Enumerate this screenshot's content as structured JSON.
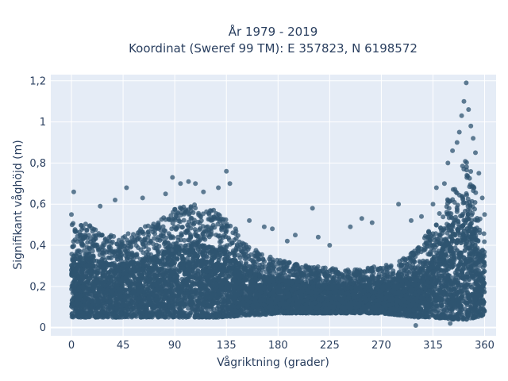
{
  "chart_data": {
    "type": "scatter",
    "title_line1": "År 1979 - 2019",
    "title_line2": "Koordinat (Sweref 99 TM): E 357823, N 6198572",
    "xlabel": "Vågriktning (grader)",
    "ylabel": "Signifikant våghöjd (m)",
    "xlim": [
      -18,
      370
    ],
    "ylim": [
      -0.04,
      1.23
    ],
    "x_ticks": [
      0,
      45,
      90,
      135,
      180,
      225,
      270,
      315,
      360
    ],
    "x_tick_labels": [
      "0",
      "45",
      "90",
      "135",
      "180",
      "225",
      "270",
      "315",
      "360"
    ],
    "y_ticks": [
      0,
      0.2,
      0.4,
      0.6,
      0.8,
      1.0,
      1.2
    ],
    "y_tick_labels": [
      "0",
      "0,2",
      "0,4",
      "0,6",
      "0,8",
      "1",
      "1,2"
    ],
    "grid": true,
    "marker_color": "#2f5470",
    "density_envelope": {
      "x": [
        0,
        15,
        30,
        45,
        60,
        75,
        90,
        105,
        120,
        135,
        150,
        165,
        180,
        195,
        210,
        225,
        240,
        255,
        270,
        285,
        300,
        315,
        330,
        345,
        360
      ],
      "y_min": [
        0.05,
        0.05,
        0.05,
        0.05,
        0.05,
        0.05,
        0.05,
        0.05,
        0.05,
        0.05,
        0.06,
        0.06,
        0.07,
        0.07,
        0.07,
        0.07,
        0.07,
        0.07,
        0.07,
        0.06,
        0.05,
        0.05,
        0.04,
        0.04,
        0.06
      ],
      "y_max": [
        0.52,
        0.5,
        0.46,
        0.45,
        0.48,
        0.52,
        0.58,
        0.6,
        0.58,
        0.55,
        0.42,
        0.36,
        0.33,
        0.31,
        0.3,
        0.29,
        0.28,
        0.29,
        0.3,
        0.32,
        0.38,
        0.5,
        0.65,
        0.85,
        0.45
      ]
    },
    "outliers": [
      {
        "x": 2,
        "y": 0.66
      },
      {
        "x": 0,
        "y": 0.55
      },
      {
        "x": 25,
        "y": 0.59
      },
      {
        "x": 38,
        "y": 0.62
      },
      {
        "x": 48,
        "y": 0.68
      },
      {
        "x": 62,
        "y": 0.63
      },
      {
        "x": 82,
        "y": 0.65
      },
      {
        "x": 88,
        "y": 0.73
      },
      {
        "x": 95,
        "y": 0.7
      },
      {
        "x": 102,
        "y": 0.71
      },
      {
        "x": 108,
        "y": 0.7
      },
      {
        "x": 115,
        "y": 0.66
      },
      {
        "x": 128,
        "y": 0.68
      },
      {
        "x": 135,
        "y": 0.76
      },
      {
        "x": 138,
        "y": 0.7
      },
      {
        "x": 155,
        "y": 0.52
      },
      {
        "x": 168,
        "y": 0.49
      },
      {
        "x": 175,
        "y": 0.48
      },
      {
        "x": 188,
        "y": 0.42
      },
      {
        "x": 195,
        "y": 0.45
      },
      {
        "x": 210,
        "y": 0.58
      },
      {
        "x": 215,
        "y": 0.44
      },
      {
        "x": 225,
        "y": 0.4
      },
      {
        "x": 243,
        "y": 0.49
      },
      {
        "x": 253,
        "y": 0.53
      },
      {
        "x": 262,
        "y": 0.51
      },
      {
        "x": 285,
        "y": 0.6
      },
      {
        "x": 296,
        "y": 0.52
      },
      {
        "x": 305,
        "y": 0.54
      },
      {
        "x": 315,
        "y": 0.6
      },
      {
        "x": 318,
        "y": 0.68
      },
      {
        "x": 325,
        "y": 0.7
      },
      {
        "x": 328,
        "y": 0.8
      },
      {
        "x": 332,
        "y": 0.86
      },
      {
        "x": 336,
        "y": 0.9
      },
      {
        "x": 338,
        "y": 0.95
      },
      {
        "x": 340,
        "y": 1.03
      },
      {
        "x": 342,
        "y": 1.1
      },
      {
        "x": 344,
        "y": 1.19
      },
      {
        "x": 346,
        "y": 1.06
      },
      {
        "x": 348,
        "y": 0.98
      },
      {
        "x": 350,
        "y": 0.92
      },
      {
        "x": 352,
        "y": 0.85
      },
      {
        "x": 355,
        "y": 0.75
      },
      {
        "x": 358,
        "y": 0.63
      },
      {
        "x": 360,
        "y": 0.55
      },
      {
        "x": 330,
        "y": 0.02
      },
      {
        "x": 300,
        "y": 0.01
      }
    ]
  }
}
